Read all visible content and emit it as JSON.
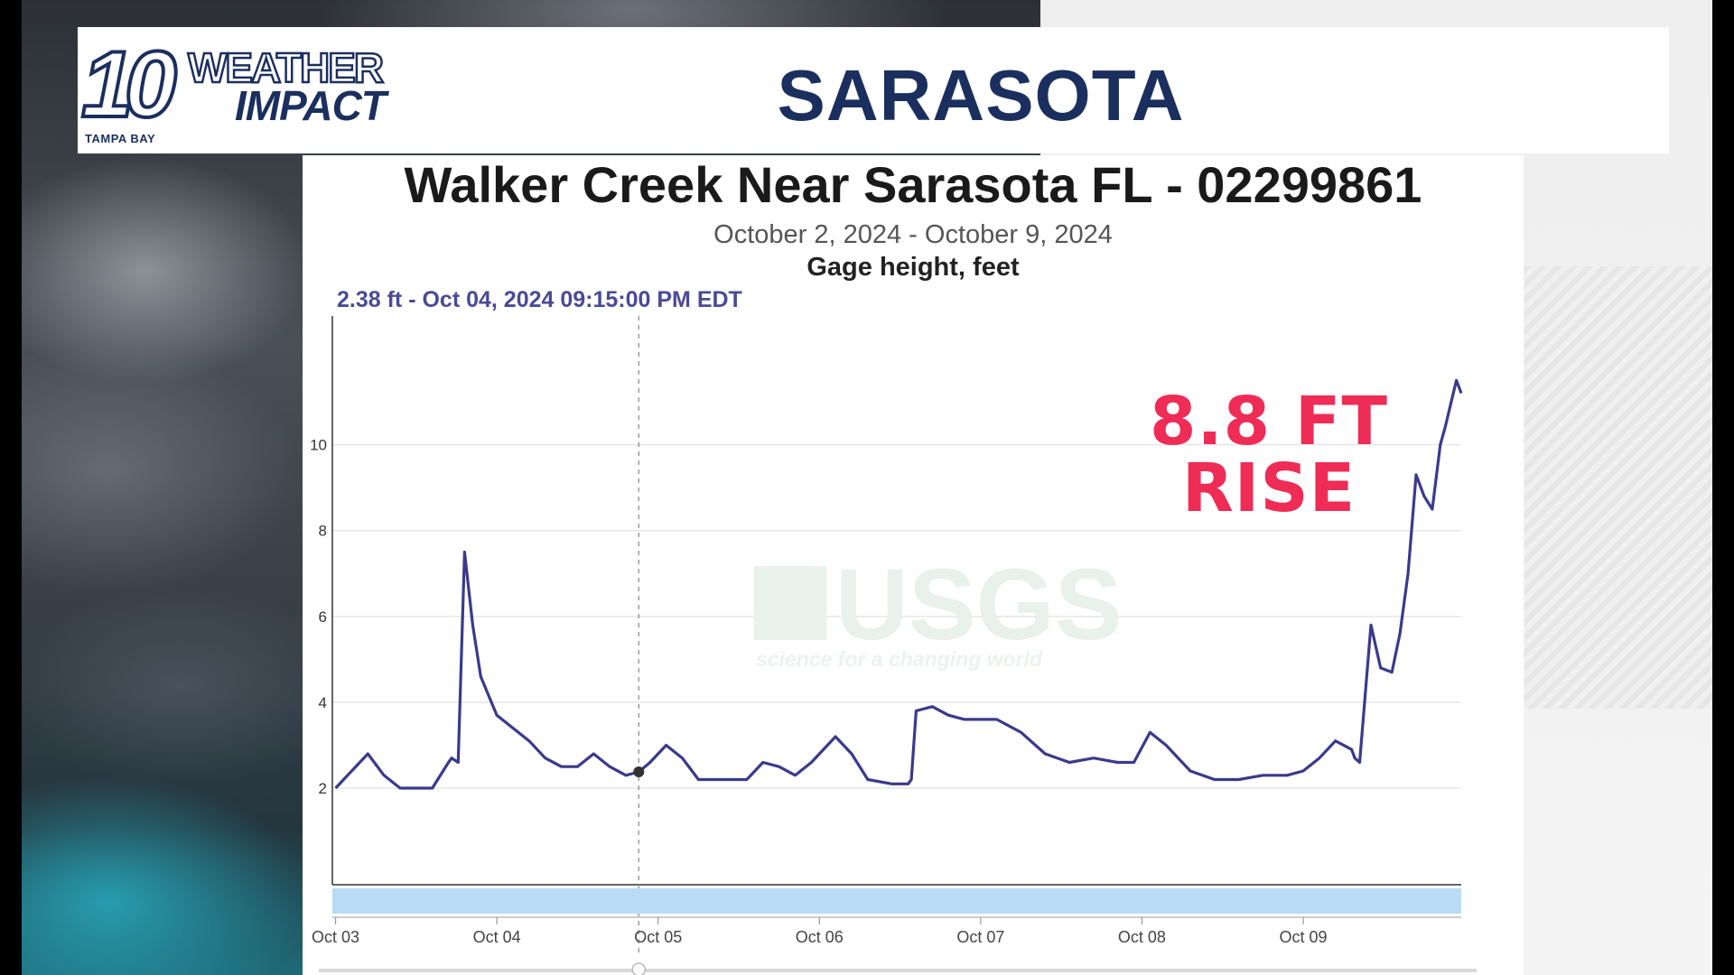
{
  "header": {
    "logo_number": "10",
    "logo_line1": "WEATHER",
    "logo_line2": "IMPACT",
    "logo_station": "TAMPA BAY",
    "city": "SARASOTA"
  },
  "annotation": {
    "line1": "8.8 FT",
    "line2": "RISE"
  },
  "colors": {
    "line": "#3a3a8c",
    "annotation": "#ef2c55",
    "navigator": "#b9dcf6",
    "brand": "#1b2f5e"
  },
  "chart_data": {
    "type": "line",
    "title": "Walker Creek Near Sarasota FL - 02299861",
    "subtitle": "October 2, 2024 - October 9, 2024",
    "ylabel": "Gage height, feet",
    "tooltip": "2.38 ft - Oct 04, 2024 09:15:00 PM EDT",
    "watermark": "USGS",
    "watermark_tagline": "science for a changing world",
    "grid": true,
    "legend": "none",
    "xlim": [
      2.98,
      9.98
    ],
    "ylim": [
      -0.25,
      13
    ],
    "y_ticks": [
      2,
      4,
      6,
      8,
      10
    ],
    "x_ticks": [
      {
        "x": 3,
        "label": "Oct 03"
      },
      {
        "x": 4,
        "label": "Oct 04"
      },
      {
        "x": 5,
        "label": "Oct 05"
      },
      {
        "x": 6,
        "label": "Oct 06"
      },
      {
        "x": 7,
        "label": "Oct 07"
      },
      {
        "x": 8,
        "label": "Oct 08"
      },
      {
        "x": 9,
        "label": "Oct 09"
      }
    ],
    "cursor": {
      "x": 4.88,
      "y": 2.38
    },
    "series": [
      {
        "x": [
          3.0,
          3.1,
          3.2,
          3.3,
          3.4,
          3.5,
          3.6,
          3.7,
          3.72,
          3.76,
          3.8,
          3.85,
          3.9,
          4.0,
          4.1,
          4.2,
          4.3,
          4.4,
          4.5,
          4.6,
          4.7,
          4.8,
          4.88,
          4.95,
          5.05,
          5.15,
          5.25,
          5.4,
          5.55,
          5.65,
          5.75,
          5.85,
          5.95,
          6.1,
          6.2,
          6.3,
          6.45,
          6.55,
          6.57,
          6.6,
          6.7,
          6.8,
          6.9,
          7.0,
          7.1,
          7.25,
          7.4,
          7.55,
          7.7,
          7.85,
          7.95,
          8.05,
          8.15,
          8.3,
          8.45,
          8.6,
          8.75,
          8.9,
          9.0,
          9.1,
          9.2,
          9.3,
          9.32,
          9.35,
          9.42,
          9.48,
          9.55,
          9.6,
          9.65,
          9.7,
          9.75,
          9.8,
          9.85,
          9.88,
          9.95,
          9.98
        ],
        "y": [
          2.0,
          2.4,
          2.8,
          2.3,
          2.0,
          2.0,
          2.0,
          2.6,
          2.7,
          2.6,
          7.5,
          5.8,
          4.6,
          3.7,
          3.4,
          3.1,
          2.7,
          2.5,
          2.5,
          2.8,
          2.5,
          2.3,
          2.38,
          2.6,
          3.0,
          2.7,
          2.2,
          2.2,
          2.2,
          2.6,
          2.5,
          2.3,
          2.6,
          3.2,
          2.8,
          2.2,
          2.1,
          2.1,
          2.2,
          3.8,
          3.9,
          3.7,
          3.6,
          3.6,
          3.6,
          3.3,
          2.8,
          2.6,
          2.7,
          2.6,
          2.6,
          3.3,
          3.0,
          2.4,
          2.2,
          2.2,
          2.3,
          2.3,
          2.4,
          2.7,
          3.1,
          2.9,
          2.7,
          2.6,
          5.8,
          4.8,
          4.7,
          5.6,
          7.0,
          9.3,
          8.8,
          8.5,
          10.0,
          10.4,
          11.5,
          11.2
        ]
      }
    ]
  }
}
